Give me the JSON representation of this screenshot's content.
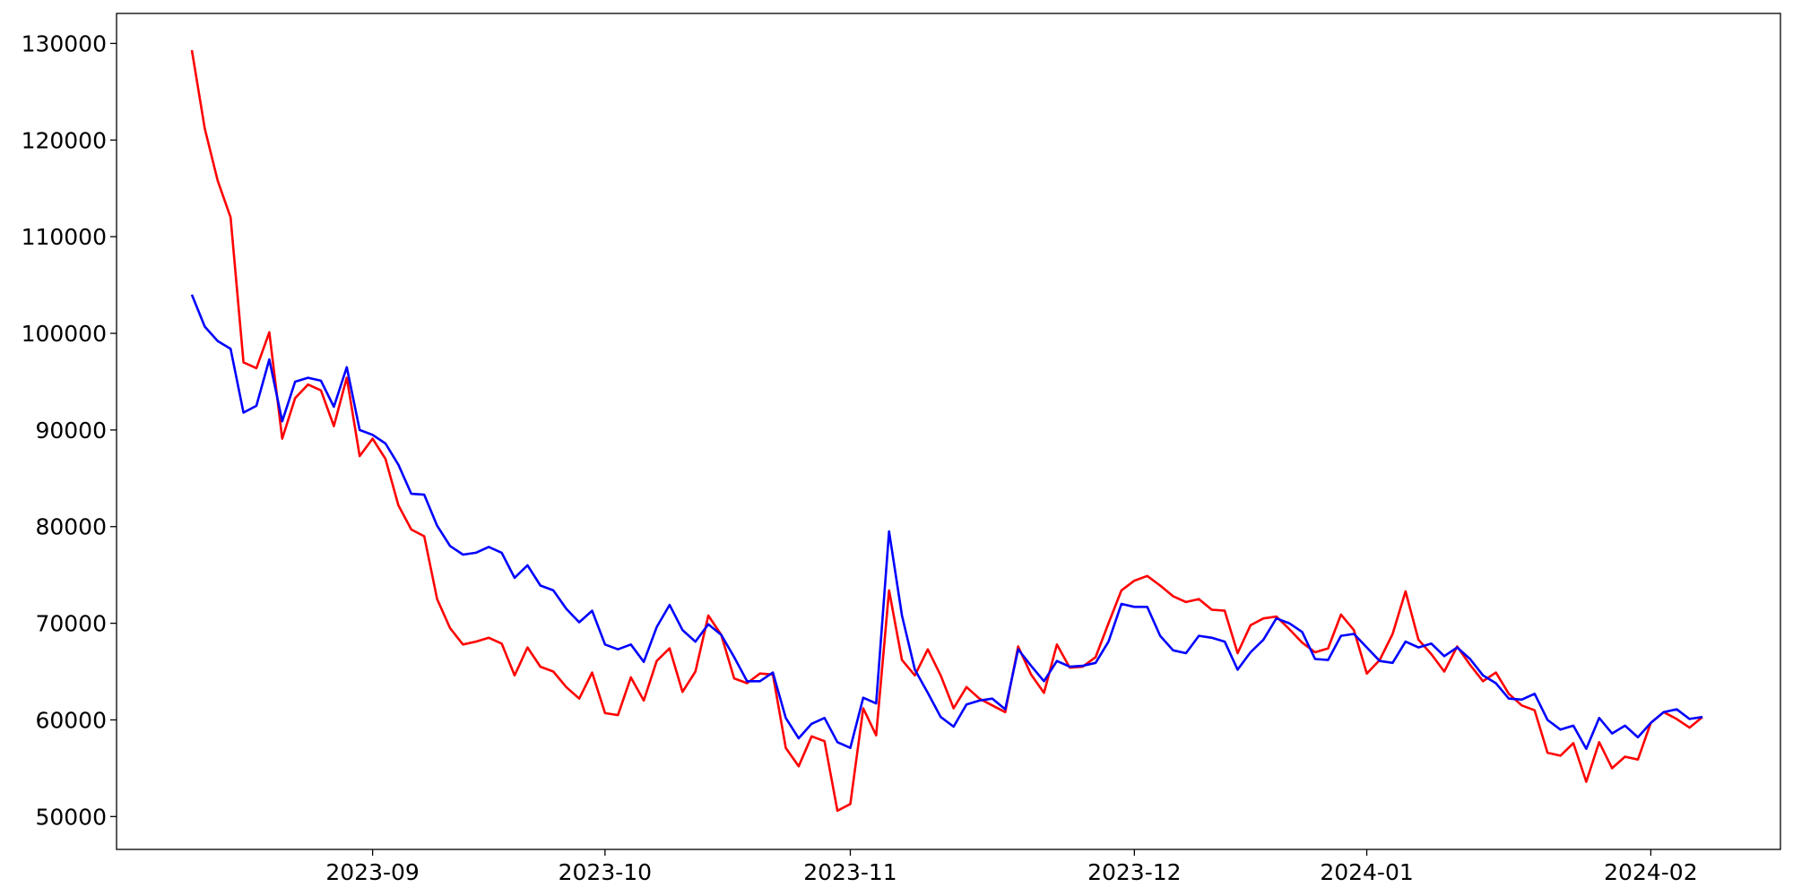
{
  "chart_data": {
    "type": "line",
    "categories": [
      null,
      null,
      null,
      null,
      null,
      null,
      null,
      null,
      null,
      null,
      null,
      null,
      null,
      null,
      "2023-09",
      null,
      null,
      null,
      null,
      null,
      null,
      null,
      null,
      null,
      null,
      null,
      null,
      null,
      null,
      null,
      null,
      null,
      "2023-10",
      null,
      null,
      null,
      null,
      null,
      null,
      null,
      null,
      null,
      null,
      null,
      null,
      null,
      null,
      null,
      null,
      null,
      null,
      "2023-11",
      null,
      null,
      null,
      null,
      null,
      null,
      null,
      null,
      null,
      null,
      null,
      null,
      null,
      null,
      null,
      null,
      null,
      null,
      null,
      null,
      null,
      "2023-12",
      null,
      null,
      null,
      null,
      null,
      null,
      null,
      null,
      null,
      null,
      null,
      null,
      null,
      null,
      null,
      null,
      null,
      "2024-01",
      null,
      null,
      null,
      null,
      null,
      null,
      null,
      null,
      null,
      null,
      null,
      null,
      null,
      null,
      null,
      null,
      null,
      null,
      null,
      null,
      null,
      "2024-02",
      null,
      null,
      null,
      null
    ],
    "series": [
      {
        "color": "#ff0000",
        "values": [
          129300,
          121200,
          115800,
          112000,
          97000,
          96400,
          100100,
          89100,
          93300,
          94700,
          94100,
          90400,
          95400,
          87300,
          89100,
          87000,
          82200,
          79700,
          79000,
          72500,
          69500,
          67800,
          68100,
          68500,
          67900,
          64600,
          67500,
          65500,
          65000,
          63400,
          62200,
          64900,
          60700,
          60500,
          64400,
          62000,
          66100,
          67400,
          62900,
          65000,
          70800,
          68800,
          64300,
          63800,
          64800,
          64700,
          57100,
          55200,
          58300,
          57800,
          50600,
          51300,
          61200,
          58400,
          73400,
          66200,
          64600,
          67300,
          64600,
          61200,
          63400,
          62200,
          61500,
          60800,
          67600,
          64700,
          62800,
          67800,
          65400,
          65500,
          66500,
          70000,
          73400,
          74400,
          74900,
          73900,
          72800,
          72200,
          72500,
          71400,
          71300,
          66900,
          69800,
          70500,
          70700,
          69400,
          68000,
          67000,
          67400,
          70900,
          69300,
          64800,
          66200,
          68900,
          73300,
          68300,
          66800,
          65000,
          67600,
          65700,
          64000,
          64900,
          62700,
          61500,
          61000,
          56600,
          56300,
          57600,
          53600,
          57700,
          55000,
          56200,
          55900,
          59700,
          60800,
          60100,
          59200,
          60300
        ]
      },
      {
        "color": "#0000ff",
        "values": [
          104000,
          100700,
          99200,
          98400,
          91800,
          92500,
          97300,
          90900,
          95000,
          95400,
          95100,
          92400,
          96500,
          90000,
          89500,
          88600,
          86400,
          83400,
          83300,
          80100,
          78000,
          77100,
          77300,
          77900,
          77300,
          74700,
          76000,
          73900,
          73400,
          71500,
          70100,
          71300,
          67800,
          67300,
          67800,
          66000,
          69600,
          71900,
          69300,
          68100,
          69900,
          68800,
          66500,
          64000,
          64000,
          64900,
          60200,
          58100,
          59600,
          60200,
          57700,
          57100,
          62300,
          61700,
          79500,
          70800,
          65200,
          62800,
          60300,
          59300,
          61600,
          62000,
          62200,
          61100,
          67300,
          65600,
          64000,
          66100,
          65500,
          65600,
          65900,
          68100,
          72000,
          71700,
          71700,
          68700,
          67200,
          66900,
          68700,
          68500,
          68100,
          65200,
          67000,
          68300,
          70500,
          70000,
          69100,
          66300,
          66200,
          68700,
          68900,
          67500,
          66100,
          65900,
          68100,
          67500,
          67900,
          66600,
          67500,
          66300,
          64600,
          63800,
          62200,
          62100,
          62700,
          60000,
          59000,
          59400,
          57000,
          60200,
          58600,
          59400,
          58200,
          59700,
          60800,
          61100,
          60100,
          60300
        ]
      }
    ],
    "ylim": [
      46600,
      133100
    ],
    "yticks": [
      50000,
      60000,
      70000,
      80000,
      90000,
      100000,
      110000,
      120000,
      130000
    ],
    "grid": false
  }
}
